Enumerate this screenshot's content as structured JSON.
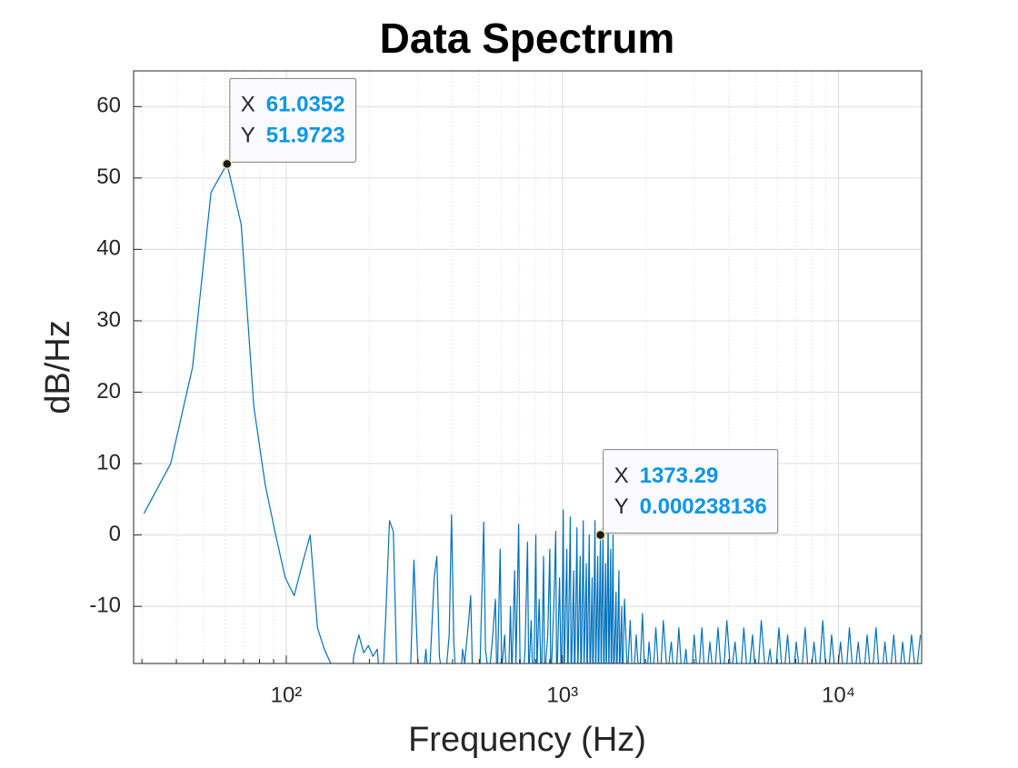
{
  "chart_data": {
    "type": "line",
    "title": "Data Spectrum",
    "x_label": "Frequency (Hz)",
    "y_label": "dB/Hz",
    "xscale": "log",
    "grid": true,
    "xlim": [
      28,
      20000
    ],
    "ylim": [
      -18,
      65
    ],
    "xticks": [
      {
        "value": 100,
        "label": "10²"
      },
      {
        "value": 1000,
        "label": "10³"
      },
      {
        "value": 10000,
        "label": "10⁴"
      }
    ],
    "xminor_ticks": [
      30,
      40,
      50,
      60,
      70,
      80,
      90,
      200,
      300,
      400,
      500,
      600,
      700,
      800,
      900,
      2000,
      3000,
      4000,
      5000,
      6000,
      7000,
      8000,
      9000,
      20000
    ],
    "yticks": [
      -10,
      0,
      10,
      20,
      30,
      40,
      50,
      60
    ],
    "series": [
      {
        "color": "#0072BD",
        "x": [
          30.5176,
          38.147,
          45.7764,
          53.4058,
          61.0352,
          68.6646,
          76.2939,
          83.9233,
          91.5527,
          99.1821,
          106.8115,
          114.4409,
          122.0703,
          129.6997,
          137.3291,
          144.9585,
          152.5879,
          167.8467,
          175.4761,
          183.1055,
          190.7349,
          198.3643,
          205.9937,
          213.623,
          221.2524,
          228.8818,
          236.5112,
          244.1406,
          251.77,
          267.0288,
          282.2876,
          289.917,
          297.5464,
          305.1758,
          320.4346,
          328.064,
          343.3228,
          350.9521,
          358.5815,
          373.8403,
          389.0991,
          396.7285,
          404.3579,
          419.6167,
          434.8755,
          442.5049,
          457.7637,
          465.3931,
          473.0225,
          488.2813,
          503.54,
          518.7988,
          526.4282,
          541.687,
          556.9458,
          572.2046,
          579.834,
          595.0928,
          602.7222,
          617.981,
          633.2397,
          648.4985,
          656.1279,
          671.3867,
          679.0161,
          694.2749,
          701.9043,
          717.1631,
          732.4219,
          747.6807,
          755.3101,
          770.5688,
          785.8276,
          801.0864,
          808.7158,
          823.9746,
          839.2334,
          854.4922,
          862.1216,
          885.0098,
          900.2686,
          907.898,
          930.7861,
          946.0449,
          953.6743,
          976.5625,
          991.8213,
          1007.0801,
          1014.7095,
          1037.5977,
          1045.2271,
          1068.1152,
          1075.7446,
          1098.6328,
          1106.2622,
          1129.1504,
          1136.7798,
          1159.668,
          1167.2974,
          1190.1855,
          1197.8149,
          1220.7031,
          1228.3325,
          1251.2207,
          1258.8501,
          1281.7383,
          1289.3677,
          1312.2559,
          1319.8853,
          1342.7734,
          1350.4028,
          1373.291,
          1380.9204,
          1403.8086,
          1411.438,
          1434.3262,
          1441.9556,
          1464.8438,
          1472.4731,
          1495.3613,
          1502.9907,
          1525.8789,
          1533.5083,
          1564.0259,
          1571.6553,
          1602.1729,
          1609.8022,
          1640.3198,
          1647.9492,
          1678.4668,
          1720,
          1760,
          1800,
          1850,
          1900,
          1950,
          2000,
          2060,
          2120,
          2180,
          2250,
          2320,
          2400,
          2480,
          2560,
          2640,
          2720,
          2800,
          2900,
          3000,
          3100,
          3200,
          3300,
          3420,
          3540,
          3660,
          3800,
          3940,
          4080,
          4220,
          4380,
          4540,
          4700,
          4880,
          5060,
          5250,
          5450,
          5650,
          5860,
          6080,
          6300,
          6540,
          6780,
          7030,
          7300,
          7570,
          7850,
          8150,
          8450,
          8770,
          9100,
          9440,
          9800,
          10170,
          10550,
          10950,
          11360,
          11790,
          12230,
          12690,
          13170,
          13670,
          14180,
          14720,
          15270,
          15850,
          16450,
          17070,
          17710,
          18380,
          19070,
          19790
        ],
        "values": [
          3,
          10,
          23.5,
          48,
          51.9723,
          43.5,
          18,
          7,
          0,
          -6,
          -8.5,
          -4,
          0,
          -13,
          -16,
          -18,
          -24,
          -26,
          -17,
          -14,
          -16.5,
          -15.5,
          -17,
          -16,
          -24,
          -12,
          2,
          0.5,
          -20,
          -30,
          -18,
          -3.5,
          -15,
          -25,
          -16,
          -22,
          -6,
          -3,
          -17,
          -22,
          -14,
          2.8,
          -15,
          -26,
          -16,
          -18,
          -12,
          -8.5,
          -20,
          -30,
          -18,
          1.8,
          -16,
          -20,
          -15,
          -9,
          -22,
          -2,
          -19,
          -14,
          -25,
          -10,
          -20,
          -5,
          -18,
          1.5,
          -17,
          -22,
          -16,
          -1,
          -20,
          -12,
          -24,
          0,
          -19,
          -9,
          -22,
          -3,
          -20,
          -14,
          -2,
          -21,
          -10,
          0.5,
          -22,
          -6,
          -23,
          3.5,
          -20,
          -2,
          -22,
          2.5,
          -21,
          -5,
          -22,
          1,
          -20,
          -3,
          -23,
          2,
          -19,
          -4,
          -22,
          0,
          -21,
          -6,
          -23,
          2,
          -20,
          -3,
          -22,
          0.000238136,
          -20,
          1,
          -22,
          -4,
          -21,
          2,
          -20,
          -2,
          -22,
          0,
          -21,
          -8,
          -22,
          -5,
          -20,
          -10,
          -23,
          -9,
          -20,
          -12,
          -22,
          -14,
          -21,
          -11,
          -23,
          -15,
          -21,
          -13,
          -22,
          -12,
          -20,
          -15,
          -22,
          -13,
          -21,
          -16,
          -23,
          -14,
          -21,
          -13,
          -22,
          -15,
          -21,
          -13,
          -22,
          -12,
          -20,
          -15,
          -22,
          -13,
          -21,
          -14,
          -22,
          -12,
          -20,
          -16,
          -22,
          -13,
          -21,
          -14,
          -22,
          -15,
          -21,
          -13,
          -22,
          -15,
          -21,
          -12,
          -22,
          -14,
          -21,
          -15,
          -22,
          -13,
          -21,
          -15,
          -22,
          -14,
          -21,
          -13,
          -22,
          -15,
          -21,
          -14,
          -22,
          -15,
          -21,
          -14,
          -20,
          -14
        ]
      }
    ],
    "datatip_labels": [
      "X",
      "Y"
    ],
    "datatips": [
      {
        "x": 61.0352,
        "y": 51.9723
      },
      {
        "x": 1373.29,
        "y": 0.000238136
      }
    ]
  }
}
